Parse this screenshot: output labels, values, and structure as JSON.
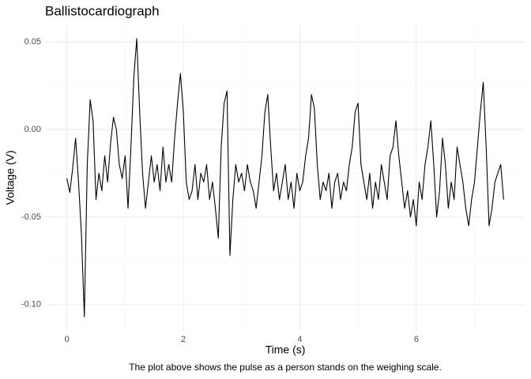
{
  "chart_data": {
    "type": "line",
    "title": "Ballistocardiograph",
    "x_label": "Time (s)",
    "y_label": "Voltage (V)",
    "caption": "The plot above shows the pulse as a person stands on the weighing scale.",
    "xlim": [
      -0.375,
      7.875
    ],
    "ylim": [
      -0.115,
      0.06
    ],
    "xticks": [
      0,
      2,
      4,
      6
    ],
    "x_minor_grid": [
      1,
      3,
      5,
      7
    ],
    "yticks": [
      0.05,
      {
        "value": 0,
        "label": "0.00"
      },
      -0.05,
      {
        "value": -0.1,
        "label": "-0.10"
      }
    ],
    "y_minor_grid": [
      0.025,
      -0.025,
      -0.075
    ],
    "grid": true,
    "series": [
      {
        "color": "#000000",
        "x": [
          0,
          0.05,
          0.1,
          0.15,
          0.2,
          0.25,
          0.3,
          0.35,
          0.4,
          0.45,
          0.5,
          0.55,
          0.6,
          0.65,
          0.7,
          0.75,
          0.8,
          0.85,
          0.9,
          0.95,
          1,
          1.05,
          1.1,
          1.15,
          1.2,
          1.25,
          1.3,
          1.35,
          1.4,
          1.45,
          1.5,
          1.55,
          1.6,
          1.65,
          1.7,
          1.75,
          1.8,
          1.85,
          1.9,
          1.95,
          2,
          2.05,
          2.1,
          2.15,
          2.2,
          2.25,
          2.3,
          2.35,
          2.4,
          2.45,
          2.5,
          2.55,
          2.6,
          2.65,
          2.7,
          2.75,
          2.8,
          2.85,
          2.9,
          2.95,
          3,
          3.05,
          3.1,
          3.15,
          3.2,
          3.25,
          3.3,
          3.35,
          3.4,
          3.45,
          3.5,
          3.55,
          3.6,
          3.65,
          3.7,
          3.75,
          3.8,
          3.85,
          3.9,
          3.95,
          4,
          4.05,
          4.1,
          4.15,
          4.2,
          4.25,
          4.3,
          4.35,
          4.4,
          4.45,
          4.5,
          4.55,
          4.6,
          4.65,
          4.7,
          4.75,
          4.8,
          4.85,
          4.9,
          4.95,
          5,
          5.05,
          5.1,
          5.15,
          5.2,
          5.25,
          5.3,
          5.35,
          5.4,
          5.45,
          5.5,
          5.55,
          5.6,
          5.65,
          5.7,
          5.75,
          5.8,
          5.85,
          5.9,
          5.95,
          6,
          6.05,
          6.1,
          6.15,
          6.2,
          6.25,
          6.3,
          6.35,
          6.4,
          6.45,
          6.5,
          6.55,
          6.6,
          6.65,
          6.7,
          6.75,
          6.8,
          6.85,
          6.9,
          6.95,
          7,
          7.05,
          7.1,
          7.15,
          7.2,
          7.25,
          7.3,
          7.35,
          7.4,
          7.45,
          7.5
        ],
        "values": [
          -0.028,
          -0.036,
          -0.022,
          -0.005,
          -0.03,
          -0.06,
          -0.107,
          -0.02,
          0.017,
          0.005,
          -0.04,
          -0.025,
          -0.035,
          -0.015,
          -0.03,
          -0.008,
          0.007,
          0,
          -0.02,
          -0.028,
          -0.015,
          -0.045,
          -0.01,
          0.03,
          0.052,
          0.01,
          -0.025,
          -0.045,
          -0.03,
          -0.015,
          -0.03,
          -0.02,
          -0.035,
          -0.01,
          -0.03,
          -0.02,
          -0.03,
          -0.005,
          0.015,
          0.032,
          0.01,
          -0.03,
          -0.04,
          -0.035,
          -0.02,
          -0.04,
          -0.025,
          -0.03,
          -0.02,
          -0.04,
          -0.03,
          -0.045,
          -0.062,
          -0.01,
          0.015,
          0.022,
          -0.072,
          -0.04,
          -0.02,
          -0.03,
          -0.025,
          -0.035,
          -0.02,
          -0.03,
          -0.035,
          -0.045,
          -0.03,
          -0.015,
          0.01,
          0.02,
          -0.01,
          -0.035,
          -0.025,
          -0.04,
          -0.03,
          -0.02,
          -0.04,
          -0.03,
          -0.045,
          -0.025,
          -0.035,
          -0.03,
          -0.015,
          -0.005,
          0.02,
          0.012,
          -0.02,
          -0.04,
          -0.03,
          -0.035,
          -0.025,
          -0.045,
          -0.03,
          -0.025,
          -0.04,
          -0.03,
          -0.035,
          -0.02,
          -0.01,
          0.01,
          0.015,
          -0.02,
          -0.03,
          -0.04,
          -0.025,
          -0.045,
          -0.03,
          -0.04,
          -0.02,
          -0.03,
          -0.04,
          -0.015,
          -0.01,
          0.005,
          -0.015,
          -0.03,
          -0.045,
          -0.035,
          -0.05,
          -0.04,
          -0.055,
          -0.03,
          -0.04,
          -0.02,
          -0.01,
          0.005,
          -0.02,
          -0.05,
          -0.035,
          -0.005,
          -0.02,
          -0.045,
          -0.03,
          -0.04,
          -0.01,
          -0.02,
          -0.03,
          -0.045,
          -0.055,
          -0.04,
          -0.03,
          -0.01,
          0.01,
          0.027,
          -0.01,
          -0.055,
          -0.045,
          -0.03,
          -0.025,
          -0.02,
          -0.04
        ]
      }
    ]
  }
}
